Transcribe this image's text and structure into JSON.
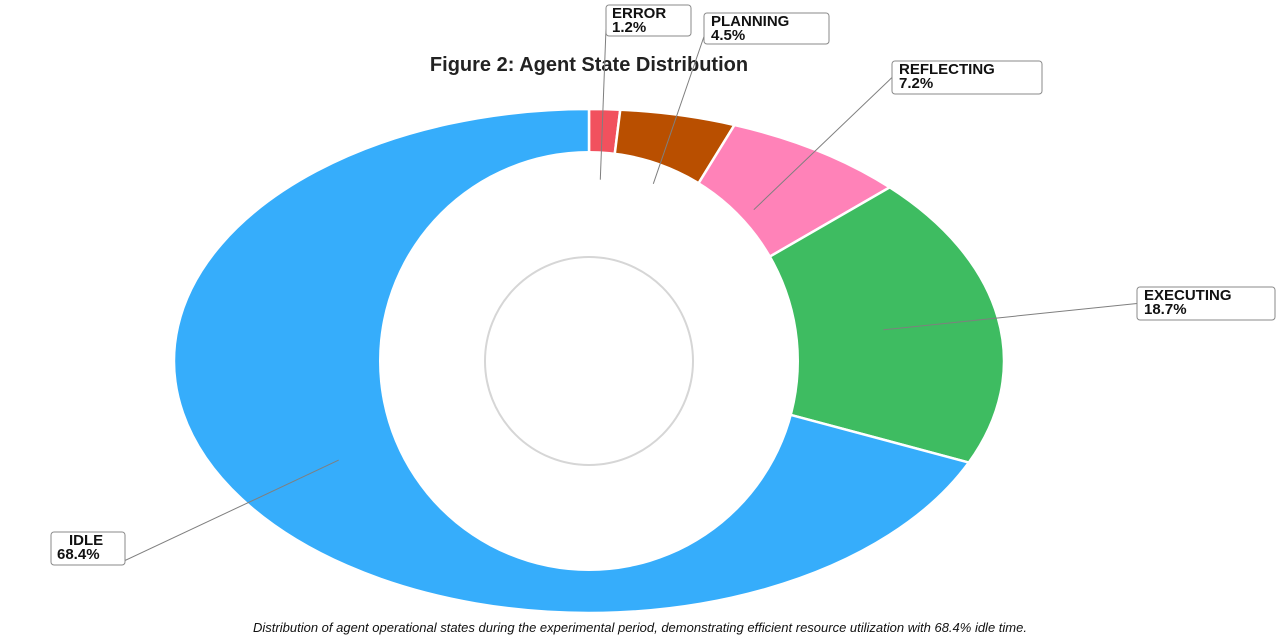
{
  "chart_data": {
    "type": "pie",
    "title": "Figure 2: Agent State Distribution",
    "caption": "Distribution of agent operational states during the experimental period, demonstrating efficient resource utilization with 68.4% idle time.",
    "slices": [
      {
        "label": "ERROR",
        "value": 1.2,
        "value_label": "1.2%",
        "color": "#f1515e"
      },
      {
        "label": "PLANNING",
        "value": 4.5,
        "value_label": "4.5%",
        "color": "#b94f00"
      },
      {
        "label": "REFLECTING",
        "value": 7.2,
        "value_label": "7.2%",
        "color": "#ff82b8"
      },
      {
        "label": "EXECUTING",
        "value": 18.7,
        "value_label": "18.7%",
        "color": "#3ebc61"
      },
      {
        "label": "IDLE",
        "value": 68.4,
        "value_label": "68.4%",
        "color": "#36adfb"
      }
    ],
    "donut": true,
    "start": "top",
    "direction": "clockwise"
  }
}
